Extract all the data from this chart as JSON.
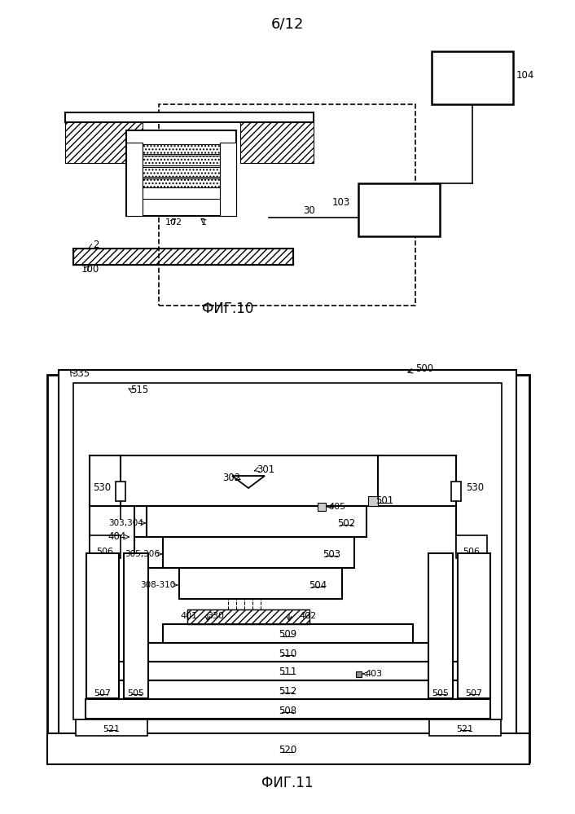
{
  "page_label": "6/12",
  "fig10_label": "ФИГ.10",
  "fig11_label": "ФИГ.11",
  "bg_color": "#ffffff",
  "line_color": "#000000"
}
